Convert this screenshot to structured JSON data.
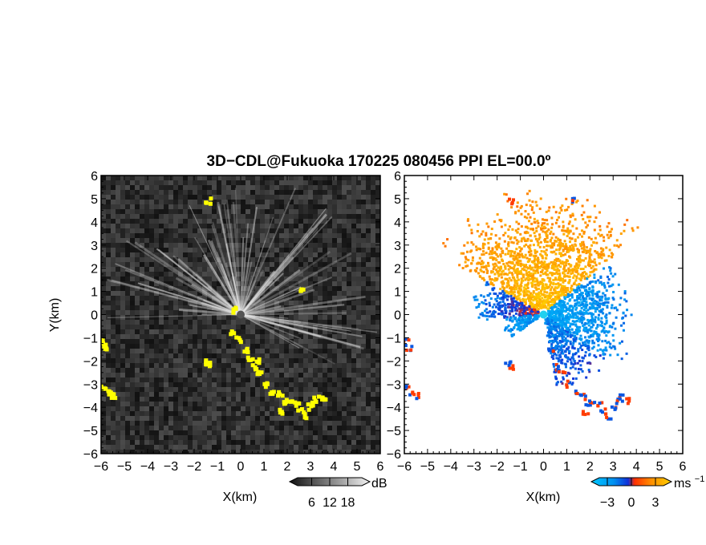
{
  "title": "3D−CDL@Fukuoka 170225 080456 PPI EL=00.0º",
  "colors": {
    "background": "#ffffff",
    "axis": "#000000",
    "highlight": "#ffff00",
    "v_neg_light": "#00c8ff",
    "v_neg_dark": "#1030d8",
    "v_zero": "#ff3000",
    "v_pos_mid": "#ff9000",
    "v_pos_light": "#ffd000"
  },
  "chart_data": [
    {
      "type": "heatmap",
      "panel": "intensity",
      "xlabel": "X(km)",
      "ylabel": "Y(km)",
      "xlim": [
        -6,
        6
      ],
      "ylim": [
        -6,
        6
      ],
      "xticks": [
        "−6",
        "−5",
        "−4",
        "−3",
        "−2",
        "−1",
        "0",
        "1",
        "2",
        "3",
        "4",
        "5",
        "6"
      ],
      "yticks": [
        "6",
        "5",
        "4",
        "3",
        "2",
        "1",
        "0",
        "−1",
        "−2",
        "−3",
        "−4",
        "−5",
        "−6"
      ],
      "colorbar": {
        "ticks": [
          "6",
          "12",
          "18"
        ],
        "unit": "dB",
        "range": [
          0,
          24
        ]
      },
      "rays": {
        "count": 90,
        "from_deg": -30,
        "to_deg": 185,
        "max_range_km": 6
      },
      "highlight_cells": [
        [
          -5.9,
          -1.2
        ],
        [
          -5.8,
          -1.5
        ],
        [
          -5.9,
          -3.1
        ],
        [
          -5.7,
          -3.4
        ],
        [
          -5.5,
          -3.5
        ],
        [
          -1.4,
          4.9
        ],
        [
          2.6,
          1.1
        ],
        [
          -0.2,
          0.2
        ],
        [
          -0.3,
          -0.8
        ],
        [
          -0.1,
          -1.1
        ],
        [
          0.2,
          -1.5
        ],
        [
          0.4,
          -1.9
        ],
        [
          0.6,
          -2.3
        ],
        [
          0.8,
          -2.6
        ],
        [
          0.7,
          -2.0
        ],
        [
          1.1,
          -3.0
        ],
        [
          1.4,
          -3.3
        ],
        [
          1.7,
          -3.4
        ],
        [
          1.9,
          -3.8
        ],
        [
          1.8,
          -4.2
        ],
        [
          2.1,
          -3.7
        ],
        [
          2.4,
          -3.9
        ],
        [
          2.6,
          -4.2
        ],
        [
          2.8,
          -4.4
        ],
        [
          3.0,
          -4.0
        ],
        [
          3.2,
          -3.7
        ],
        [
          3.4,
          -3.6
        ],
        [
          3.6,
          -3.7
        ],
        [
          -1.5,
          -2.1
        ],
        [
          -1.4,
          -2.2
        ]
      ]
    },
    {
      "type": "heatmap",
      "panel": "velocity",
      "xlabel": "X(km)",
      "xlim": [
        -6,
        6
      ],
      "ylim": [
        -6,
        6
      ],
      "xticks": [
        "−6",
        "−5",
        "−4",
        "−3",
        "−2",
        "−1",
        "0",
        "1",
        "2",
        "3",
        "4",
        "5",
        "6"
      ],
      "yticks": [
        "6",
        "5",
        "4",
        "3",
        "2",
        "1",
        "0",
        "−1",
        "−2",
        "−3",
        "−4",
        "−5",
        "−6"
      ],
      "colorbar": {
        "ticks": [
          "−3",
          "0",
          "3"
        ],
        "unit": "ms",
        "unit_sup": "−1",
        "range": [
          -4.5,
          4.5
        ]
      },
      "sectors": [
        {
          "from_deg": 40,
          "to_deg": 150,
          "max_km": 5.6,
          "min_km": 0.3,
          "v_near": 4,
          "v_far": 2
        },
        {
          "from_deg": -35,
          "to_deg": 40,
          "max_km": 4.0,
          "min_km": 0.2,
          "v_near": -3,
          "v_far": -1.5
        },
        {
          "from_deg": -80,
          "to_deg": -35,
          "max_km": 3.5,
          "min_km": 0.2,
          "v_near": -2,
          "v_far": -0.5
        },
        {
          "from_deg": 150,
          "to_deg": 185,
          "max_km": 3.2,
          "min_km": 0.2,
          "v_near": 0.5,
          "v_far": -2
        },
        {
          "from_deg": 185,
          "to_deg": 215,
          "max_km": 2.0,
          "min_km": 0.2,
          "v_near": -2.5,
          "v_far": -2
        }
      ],
      "edge_cells": [
        [
          -5.9,
          -1.2
        ],
        [
          -5.8,
          -1.5
        ],
        [
          -5.9,
          -3.1
        ],
        [
          -5.7,
          -3.4
        ],
        [
          -5.5,
          -3.5
        ],
        [
          -1.4,
          4.9
        ],
        [
          1.2,
          5.0
        ],
        [
          0.3,
          -1.5
        ],
        [
          0.6,
          -2.3
        ],
        [
          0.8,
          -2.6
        ],
        [
          1.1,
          -3.0
        ],
        [
          1.4,
          -3.3
        ],
        [
          1.7,
          -3.4
        ],
        [
          1.9,
          -3.8
        ],
        [
          1.8,
          -4.2
        ],
        [
          2.1,
          -3.7
        ],
        [
          2.4,
          -3.9
        ],
        [
          2.6,
          -4.2
        ],
        [
          2.8,
          -4.4
        ],
        [
          3.0,
          -4.0
        ],
        [
          3.2,
          -3.7
        ],
        [
          3.4,
          -3.6
        ],
        [
          3.6,
          -3.7
        ],
        [
          -1.5,
          -2.1
        ],
        [
          -1.4,
          -2.3
        ]
      ]
    }
  ]
}
